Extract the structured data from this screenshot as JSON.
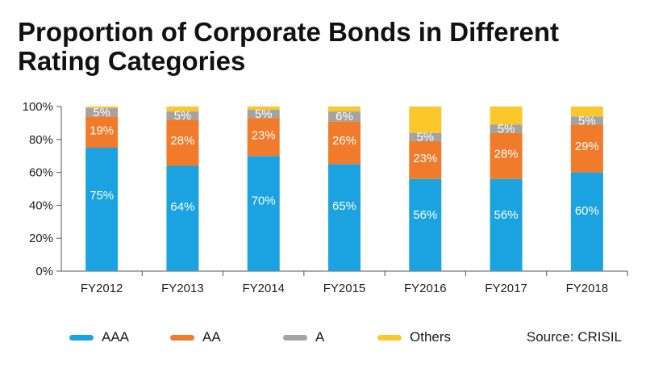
{
  "chart_data": {
    "type": "bar",
    "stacked": true,
    "title": "Proportion of Corporate Bonds in Different Rating Categories",
    "categories": [
      "FY2012",
      "FY2013",
      "FY2014",
      "FY2015",
      "FY2016",
      "FY2017",
      "FY2018"
    ],
    "series": [
      {
        "name": "AAA",
        "color": "#1aa3e0",
        "values": [
          75,
          64,
          70,
          65,
          56,
          56,
          60
        ],
        "labels": [
          "75%",
          "64%",
          "70%",
          "65%",
          "56%",
          "56%",
          "60%"
        ]
      },
      {
        "name": "AA",
        "color": "#f07b2b",
        "values": [
          19,
          28,
          23,
          26,
          23,
          28,
          29
        ],
        "labels": [
          "19%",
          "28%",
          "23%",
          "26%",
          "23%",
          "28%",
          "29%"
        ]
      },
      {
        "name": "A",
        "color": "#a3a3a3",
        "values": [
          5,
          5,
          5,
          6,
          5,
          5,
          5
        ],
        "labels": [
          "5%",
          "5%",
          "5%",
          "6%",
          "5%",
          "5%",
          "5%"
        ]
      },
      {
        "name": "Others",
        "color": "#fcc72a",
        "values": [
          1,
          3,
          2,
          3,
          16,
          11,
          6
        ],
        "labels": [
          "",
          "",
          "",
          "",
          "",
          "",
          ""
        ]
      }
    ],
    "ylim": [
      0,
      100
    ],
    "yticks": [
      "0%",
      "20%",
      "40%",
      "60%",
      "80%",
      "100%"
    ],
    "ytick_values": [
      0,
      20,
      40,
      60,
      80,
      100
    ],
    "xlabel": "",
    "ylabel": "",
    "grid": false,
    "legend_position": "bottom",
    "source": "Source: CRISIL"
  }
}
